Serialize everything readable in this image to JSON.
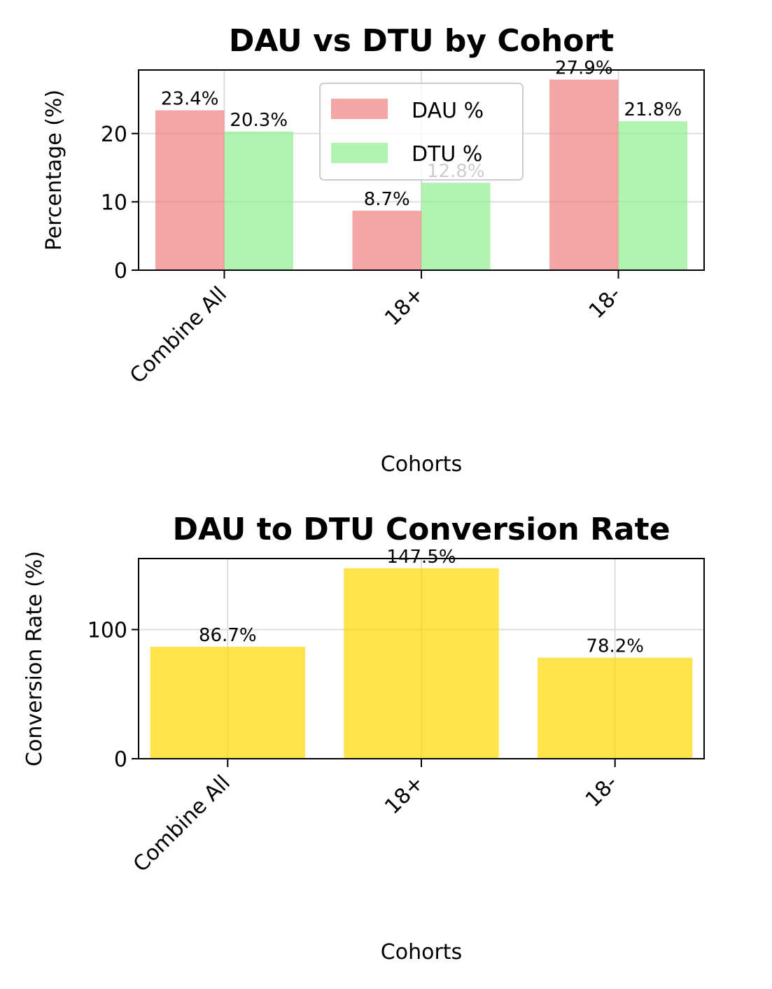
{
  "chart_data": [
    {
      "type": "bar",
      "title": "DAU vs DTU by Cohort",
      "xlabel": "Cohorts",
      "ylabel": "Percentage (%)",
      "categories": [
        "Combine All",
        "18+",
        "18-"
      ],
      "series": [
        {
          "name": "DAU %",
          "values": [
            23.4,
            8.7,
            27.9
          ],
          "labels": [
            "23.4%",
            "8.7%",
            "27.9%"
          ],
          "color": "#f08080"
        },
        {
          "name": "DTU %",
          "values": [
            20.3,
            12.8,
            21.8
          ],
          "labels": [
            "20.3%",
            "12.8%",
            "21.8%"
          ],
          "color": "#90ee90"
        }
      ],
      "ylim": [
        0,
        29.3
      ],
      "yticks": [
        "0",
        "10",
        "20"
      ],
      "grid": true,
      "legend": "upper center"
    },
    {
      "type": "bar",
      "title": "DAU to DTU Conversion Rate",
      "xlabel": "Cohorts",
      "ylabel": "Conversion Rate (%)",
      "categories": [
        "Combine All",
        "18+",
        "18-"
      ],
      "series": [
        {
          "name": "",
          "values": [
            86.7,
            147.5,
            78.2
          ],
          "labels": [
            "86.7%",
            "147.5%",
            "78.2%"
          ],
          "color": "#ffd700"
        }
      ],
      "ylim": [
        0,
        155
      ],
      "yticks": [
        "0",
        "100"
      ],
      "grid": true
    }
  ]
}
